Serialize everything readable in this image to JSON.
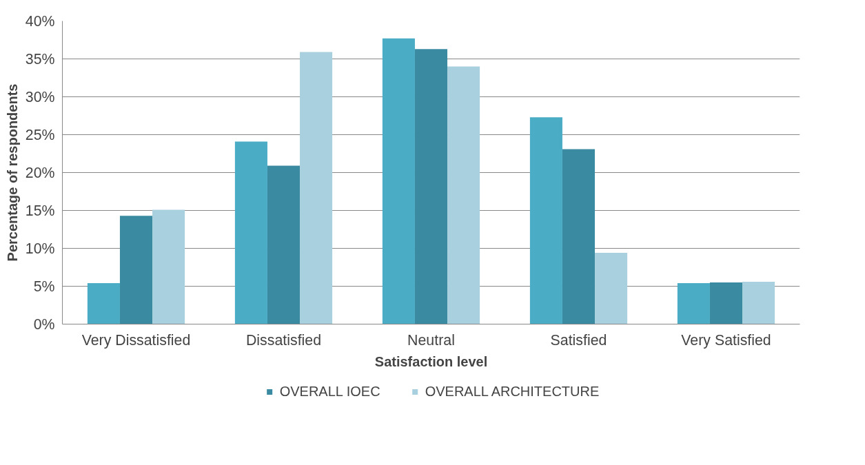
{
  "chart_data": {
    "type": "bar",
    "xlabel": "Satisfaction level",
    "ylabel": "Percentage of respondents",
    "categories": [
      "Very Dissatisfied",
      "Dissatisfied",
      "Neutral",
      "Satisfied",
      "Very Satisfied"
    ],
    "series": [
      {
        "color": "#4aacc5",
        "values": [
          5.4,
          24.1,
          37.7,
          27.3,
          5.4
        ]
      },
      {
        "name": "OVERALL IOEC",
        "color": "#3a8ba2",
        "values": [
          14.3,
          20.9,
          36.3,
          23.1,
          5.5
        ]
      },
      {
        "name": "OVERALL ARCHITECTURE",
        "color": "#a9d0de",
        "values": [
          15.1,
          35.9,
          34.0,
          9.4,
          5.6
        ]
      }
    ],
    "ylim": [
      0,
      40
    ],
    "yticks": [
      {
        "value": 0,
        "label": "0%"
      },
      {
        "value": 5,
        "label": "5%"
      },
      {
        "value": 10,
        "label": "10%"
      },
      {
        "value": 15,
        "label": "15%"
      },
      {
        "value": 20,
        "label": "20%"
      },
      {
        "value": 25,
        "label": "25%"
      },
      {
        "value": 30,
        "label": "30%"
      },
      {
        "value": 35,
        "label": "35%"
      },
      {
        "value": 40,
        "label": "40%"
      }
    ],
    "grid": "y",
    "legend": "bottom"
  }
}
